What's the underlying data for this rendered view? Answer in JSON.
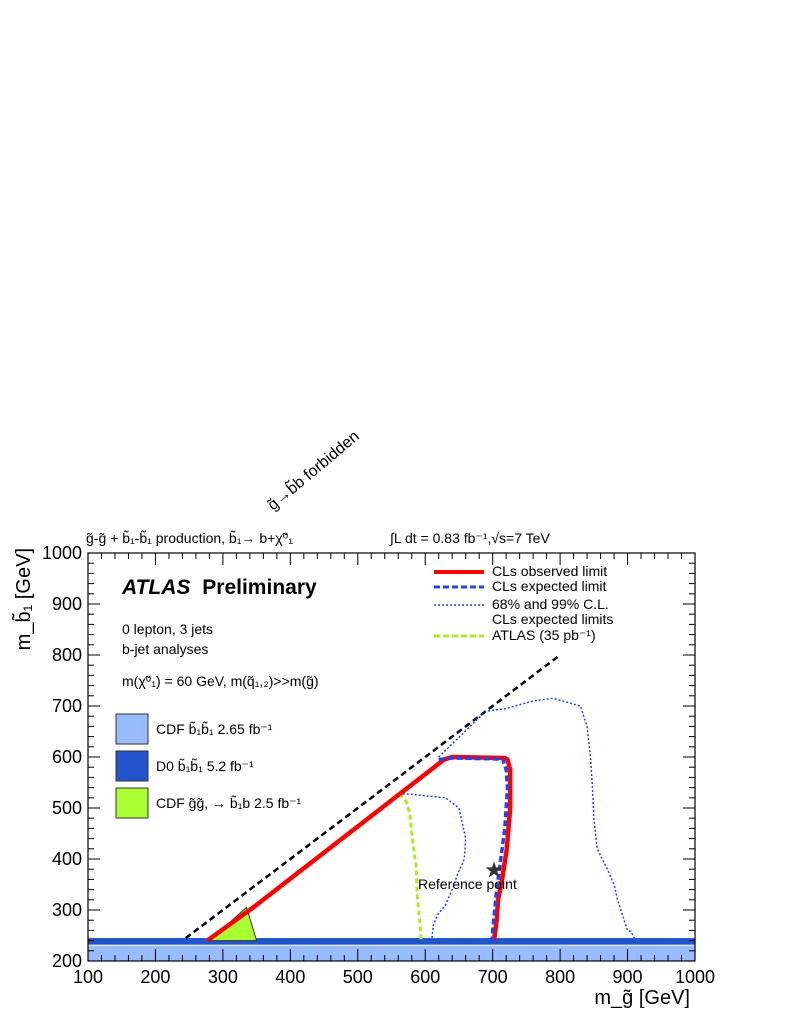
{
  "header": {
    "process": "g̃-g̃ + b̃₁-b̃₁ production, b̃₁→ b+χ̃⁰₁",
    "luminosity": "∫L dt = 0.83 fb⁻¹,√s=7 TeV"
  },
  "annotations": {
    "experiment_bold": "ATLAS",
    "experiment_rest": "Preliminary",
    "selection": "0 lepton, 3 jets",
    "analysis": "b-jet analyses",
    "assumption": "m(χ̃⁰₁) = 60 GeV, m(q̃₁,₂)>>m(g̃)",
    "forbidden": "g̃→b̃b forbidden",
    "reference_point": "Reference point"
  },
  "legend_left": [
    {
      "label": "CDF b̃₁b̃₁ 2.65 fb⁻¹",
      "color": "#99bbff"
    },
    {
      "label": "D0 b̃₁b̃₁ 5.2 fb⁻¹",
      "color": "#2255cc"
    },
    {
      "label": "CDF g̃g̃, → b̃₁b 2.5 fb⁻¹",
      "color": "#aaff33"
    }
  ],
  "legend_right": [
    {
      "label": "CLs observed limit",
      "color": "#ff0000",
      "style": "solid"
    },
    {
      "label": "CLs expected limit",
      "color": "#2244ee",
      "style": "dashed"
    },
    {
      "label": "68% and 99% C.L.",
      "color": "#2244ee",
      "style": "dotted"
    },
    {
      "label": "CLs expected limits",
      "color": "#2244ee",
      "style": "none"
    },
    {
      "label": "ATLAS (35 pb⁻¹)",
      "color": "#aaee22",
      "style": "dashed"
    }
  ],
  "colors": {
    "observed": "#ff0000",
    "expected": "#2244ee",
    "band": "#2244ee",
    "atlas35": "#aaee22",
    "cdf_bb": "#99bbff",
    "d0_bb": "#2255cc",
    "cdf_gg": "#aaff33",
    "kinematic": "#000000"
  },
  "chart_data": {
    "type": "line",
    "xlabel": "m_g̃ [GeV]",
    "ylabel": "m_b̃₁ [GeV]",
    "xlim": [
      100,
      1000
    ],
    "ylim": [
      200,
      1000
    ],
    "x_ticks": [
      100,
      200,
      300,
      400,
      500,
      600,
      700,
      800,
      900,
      1000
    ],
    "y_ticks": [
      200,
      300,
      400,
      500,
      600,
      700,
      800,
      900,
      1000
    ],
    "legend_position": "top-right",
    "grid": false,
    "series": [
      {
        "name": "CLs observed limit",
        "key": "observed",
        "x": [
          277,
          345,
          628,
          640,
          718,
          722,
          726,
          726,
          721,
          714,
          708,
          706,
          702
        ],
        "y": [
          240,
          305,
          595,
          600,
          598,
          595,
          575,
          500,
          420,
          360,
          320,
          280,
          240
        ]
      },
      {
        "name": "CLs expected limit",
        "key": "expected",
        "x": [
          620,
          640,
          715,
          720,
          722,
          718,
          712,
          706,
          703,
          700,
          699
        ],
        "y": [
          595,
          598,
          596,
          575,
          540,
          460,
          400,
          340,
          300,
          260,
          240
        ]
      },
      {
        "name": "68% and 99% C.L.",
        "key": "band_inner",
        "x": [
          555,
          570,
          600,
          630,
          650,
          655,
          660,
          658,
          648,
          640,
          630,
          618,
          612,
          610
        ],
        "y": [
          525,
          528,
          524,
          520,
          500,
          470,
          440,
          400,
          370,
          340,
          310,
          290,
          270,
          245
        ]
      },
      {
        "name": "68% and 99% C.L.",
        "key": "band_outer",
        "x": [
          620,
          690,
          720,
          760,
          790,
          830,
          840,
          845,
          848,
          850,
          855,
          870,
          880,
          885,
          890,
          895,
          900,
          905,
          912
        ],
        "y": [
          600,
          690,
          695,
          710,
          715,
          700,
          660,
          600,
          540,
          480,
          420,
          380,
          350,
          320,
          300,
          280,
          260,
          258,
          240
        ]
      },
      {
        "name": "ATLAS (35 pb⁻¹)",
        "key": "atlas35",
        "x": [
          562,
          572,
          577,
          581,
          587,
          588,
          591,
          593,
          594
        ],
        "y": [
          528,
          512,
          490,
          440,
          380,
          330,
          290,
          260,
          240
        ]
      },
      {
        "name": "g̃→b̃b forbidden",
        "key": "kinematic",
        "x": [
          245,
          800
        ],
        "y": [
          245,
          800
        ]
      }
    ],
    "regions": [
      {
        "name": "CDF b̃₁b̃₁ 2.65 fb⁻¹",
        "ymin": 200,
        "ymax": 230
      },
      {
        "name": "D0 b̃₁b̃₁ 5.2 fb⁻¹",
        "ymin": 232,
        "ymax": 245
      },
      {
        "name": "CDF g̃g̃, → b̃₁b 2.5 fb⁻¹",
        "x": [
          280,
          335,
          350,
          280
        ],
        "y": [
          240,
          305,
          240,
          240
        ]
      }
    ],
    "reference_point": {
      "x": 702,
      "y": 378
    }
  }
}
